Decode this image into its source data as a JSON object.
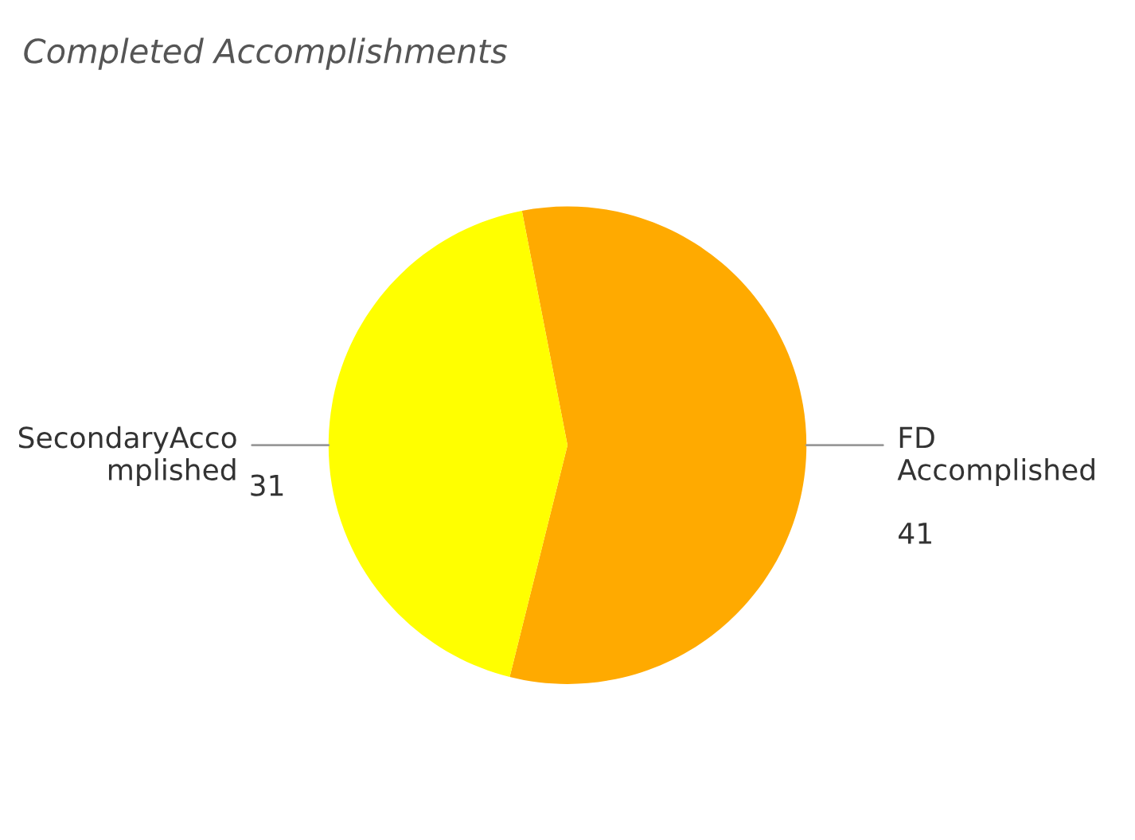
{
  "chart_data": {
    "type": "pie",
    "title": "Completed Accomplishments",
    "categories": [
      "FD Accomplished",
      "SecondaryAccomplished"
    ],
    "values": [
      41,
      31
    ],
    "colors": [
      "#ffaa00",
      "#ffff00"
    ],
    "data_labels": true,
    "legend": false
  }
}
